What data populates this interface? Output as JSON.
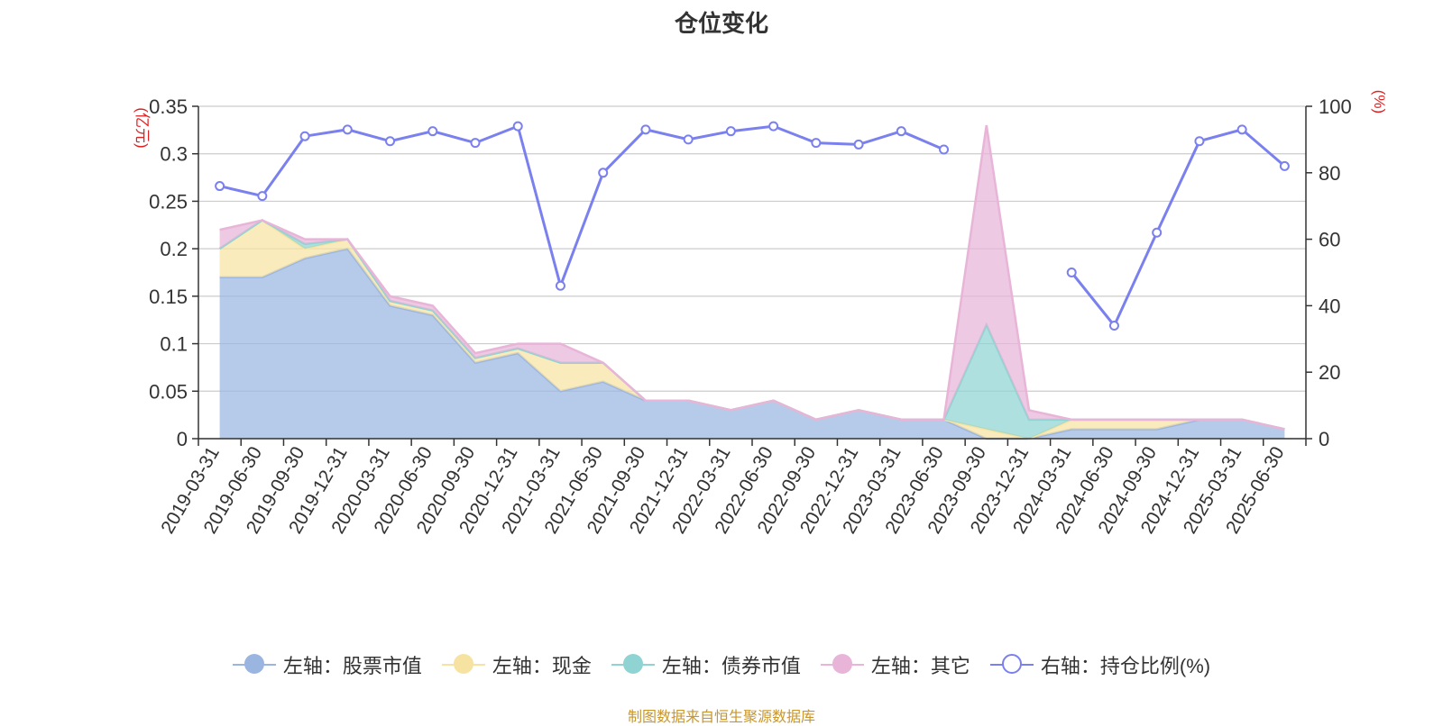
{
  "chart_data": {
    "type": "area",
    "title": "仓位变化",
    "categories": [
      "2019-03-31",
      "2019-06-30",
      "2019-09-30",
      "2019-12-31",
      "2020-03-31",
      "2020-06-30",
      "2020-09-30",
      "2020-12-31",
      "2021-03-31",
      "2021-06-30",
      "2021-09-30",
      "2021-12-31",
      "2022-03-31",
      "2022-06-30",
      "2022-09-30",
      "2022-12-31",
      "2023-03-31",
      "2023-06-30",
      "2023-09-30",
      "2023-12-31",
      "2024-03-31",
      "2024-06-30",
      "2024-09-30",
      "2024-12-31",
      "2025-03-31",
      "2025-06-30"
    ],
    "left_axis": {
      "label": "(亿元)",
      "ylim": [
        0,
        0.35
      ],
      "ticks": [
        "0",
        "0.05",
        "0.1",
        "0.15",
        "0.2",
        "0.25",
        "0.3",
        "0.35"
      ]
    },
    "right_axis": {
      "label": "(%)",
      "ylim": [
        0,
        100
      ],
      "ticks": [
        "0",
        "20",
        "40",
        "60",
        "80",
        "100"
      ]
    },
    "stacked": true,
    "series": [
      {
        "name": "左轴：股票市值",
        "axis": "left",
        "type": "area",
        "color": "#9ab5e0",
        "values": [
          0.17,
          0.17,
          0.19,
          0.2,
          0.14,
          0.13,
          0.08,
          0.09,
          0.05,
          0.06,
          0.04,
          0.04,
          0.03,
          0.04,
          0.02,
          0.03,
          0.02,
          0.02,
          0,
          0,
          0.01,
          0.01,
          0.01,
          0.02,
          0.02,
          0.01
        ]
      },
      {
        "name": "左轴：现金",
        "axis": "left",
        "type": "area",
        "color": "#f7e3a1",
        "values": [
          0.03,
          0.06,
          0.01,
          0.01,
          0.005,
          0.005,
          0.005,
          0.005,
          0.03,
          0.02,
          0,
          0,
          0,
          0,
          0,
          0,
          0,
          0,
          0.01,
          0,
          0.01,
          0.01,
          0.01,
          0,
          0,
          0
        ]
      },
      {
        "name": "左轴：债券市值",
        "axis": "left",
        "type": "area",
        "color": "#8fd4d2",
        "values": [
          0,
          0,
          0.005,
          0,
          0,
          0,
          0,
          0,
          0,
          0,
          0,
          0,
          0,
          0,
          0,
          0,
          0,
          0,
          0.11,
          0.02,
          0,
          0,
          0,
          0,
          0,
          0
        ]
      },
      {
        "name": "左轴：其它",
        "axis": "left",
        "type": "area",
        "color": "#e8b4d8",
        "values": [
          0.02,
          0,
          0.005,
          0,
          0.005,
          0.005,
          0.005,
          0.005,
          0.02,
          0,
          0,
          0,
          0,
          0,
          0,
          0,
          0,
          0,
          0.21,
          0.01,
          0,
          0,
          0,
          0,
          0,
          0
        ]
      },
      {
        "name": "右轴：持仓比例(%)",
        "axis": "right",
        "type": "line",
        "color": "#7b80ef",
        "values": [
          76,
          73,
          91,
          93,
          89.5,
          92.5,
          89,
          94,
          46,
          80,
          93,
          90,
          92.5,
          94,
          89,
          88.5,
          92.5,
          87,
          null,
          null,
          50,
          34,
          62,
          89.5,
          93,
          82
        ]
      }
    ],
    "legend_position": "bottom",
    "grid": true
  },
  "source_note": "制图数据来自恒生聚源数据库"
}
